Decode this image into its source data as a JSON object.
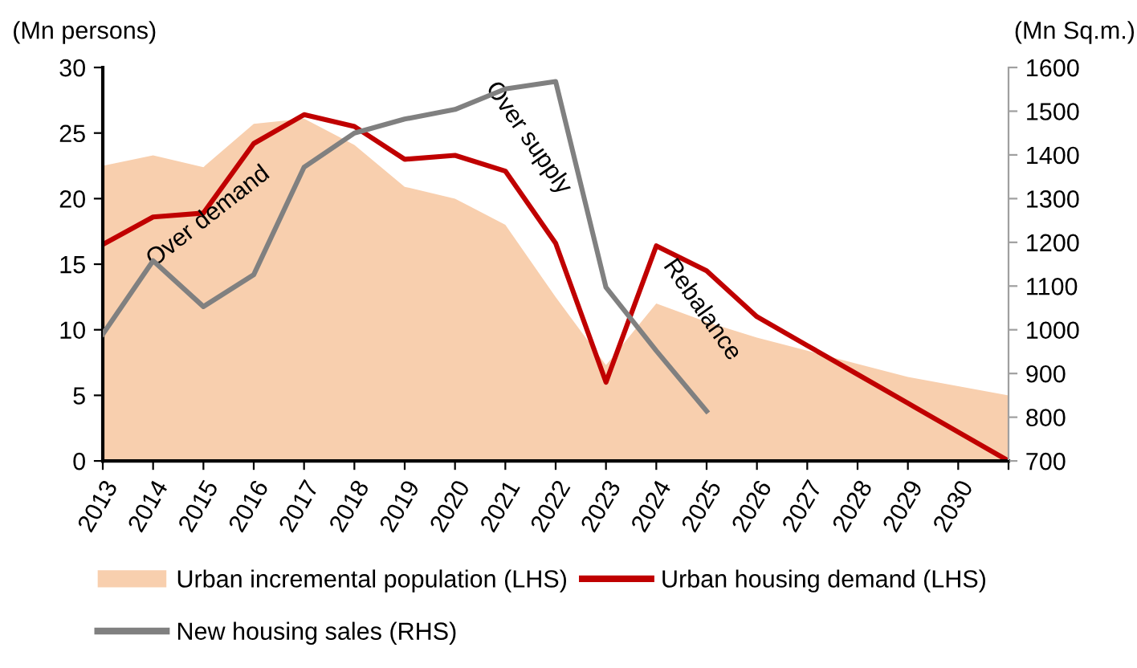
{
  "chart_data": {
    "type": "line",
    "categories": [
      "2013",
      "2014",
      "2015",
      "2016",
      "2017",
      "2018",
      "2019",
      "2020",
      "2021",
      "2022",
      "2023",
      "2024",
      "2025",
      "2026",
      "2027",
      "2028",
      "2029",
      "2030",
      null
    ],
    "series": [
      {
        "name": "Urban incremental population (LHS)",
        "type": "area",
        "color": "#f8cfae",
        "values": [
          22.5,
          23.3,
          22.4,
          25.7,
          26.1,
          24.1,
          20.9,
          20.0,
          18.0,
          12.5,
          7.3,
          12.0,
          10.6,
          9.4,
          8.4,
          7.4,
          6.4,
          5.7,
          5.0
        ]
      },
      {
        "name": "Urban housing demand (LHS)",
        "color": "#c00000",
        "values": [
          16.5,
          18.6,
          18.9,
          24.2,
          26.4,
          25.5,
          23.0,
          23.3,
          22.1,
          16.6,
          6.0,
          16.4,
          14.5,
          11.0,
          8.8,
          6.6,
          4.4,
          2.2,
          0
        ]
      },
      {
        "name": "New housing sales (RHS)",
        "axis": "y2",
        "color": "#808080",
        "values": [
          990,
          1158,
          1053,
          1126,
          1372,
          1450,
          1482,
          1504,
          1551,
          1568,
          1097,
          952,
          814,
          null,
          null,
          null,
          null,
          null,
          null
        ]
      }
    ],
    "ylabel": "(Mn persons)",
    "y2label": "(Mn Sq.m.)",
    "ylim": [
      0,
      30
    ],
    "yticks": [
      0,
      5,
      10,
      15,
      20,
      25,
      30
    ],
    "y2lim": [
      700,
      1600
    ],
    "y2ticks": [
      700,
      800,
      900,
      1000,
      1100,
      1200,
      1300,
      1400,
      1500,
      1600
    ],
    "annotations": [
      "Over demand",
      "Over supply",
      "Rebalance"
    ],
    "legend": "bottom",
    "grid": false,
    "marker": "none",
    "line_style": "solid"
  }
}
